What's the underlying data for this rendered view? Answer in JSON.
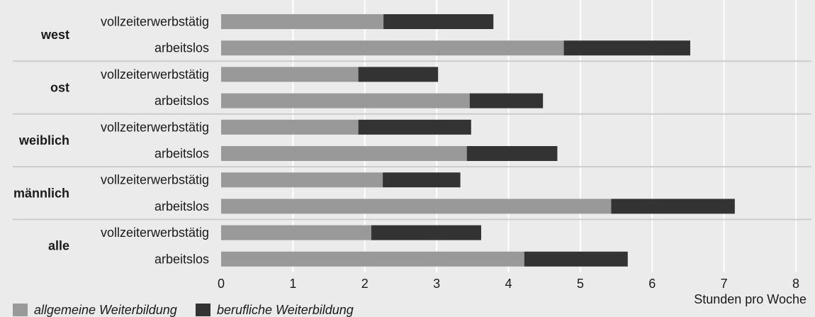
{
  "chart_data": {
    "type": "bar",
    "orientation": "horizontal",
    "stacked": true,
    "xlabel": "Stunden pro Woche",
    "xlim": [
      0,
      8
    ],
    "xticks": [
      0,
      1,
      2,
      3,
      4,
      5,
      6,
      7,
      8
    ],
    "grid": true,
    "legend": "bottom-left",
    "series": [
      {
        "name": "allgemeine Weiterbildung",
        "color": "#999999"
      },
      {
        "name": "berufliche Weiterbildung",
        "color": "#333333"
      }
    ],
    "groups": [
      {
        "label": "west",
        "rows": [
          {
            "label": "vollzeiterwerbstätig",
            "values": [
              2.26,
              1.53
            ]
          },
          {
            "label": "arbeitslos",
            "values": [
              4.77,
              1.76
            ]
          }
        ]
      },
      {
        "label": "ost",
        "rows": [
          {
            "label": "vollzeiterwerbstätig",
            "values": [
              1.91,
              1.11
            ]
          },
          {
            "label": "arbeitslos",
            "values": [
              3.46,
              1.02
            ]
          }
        ]
      },
      {
        "label": "weiblich",
        "rows": [
          {
            "label": "vollzeiterwerbstätig",
            "values": [
              1.91,
              1.57
            ]
          },
          {
            "label": "arbeitslos",
            "values": [
              3.42,
              1.26
            ]
          }
        ]
      },
      {
        "label": "männlich",
        "rows": [
          {
            "label": "vollzeiterwerbstätig",
            "values": [
              2.25,
              1.08
            ]
          },
          {
            "label": "arbeitslos",
            "values": [
              5.43,
              1.72
            ]
          }
        ]
      },
      {
        "label": "alle",
        "rows": [
          {
            "label": "vollzeiterwerbstätig",
            "values": [
              2.09,
              1.53
            ]
          },
          {
            "label": "arbeitslos",
            "values": [
              4.22,
              1.44
            ]
          }
        ]
      }
    ]
  }
}
